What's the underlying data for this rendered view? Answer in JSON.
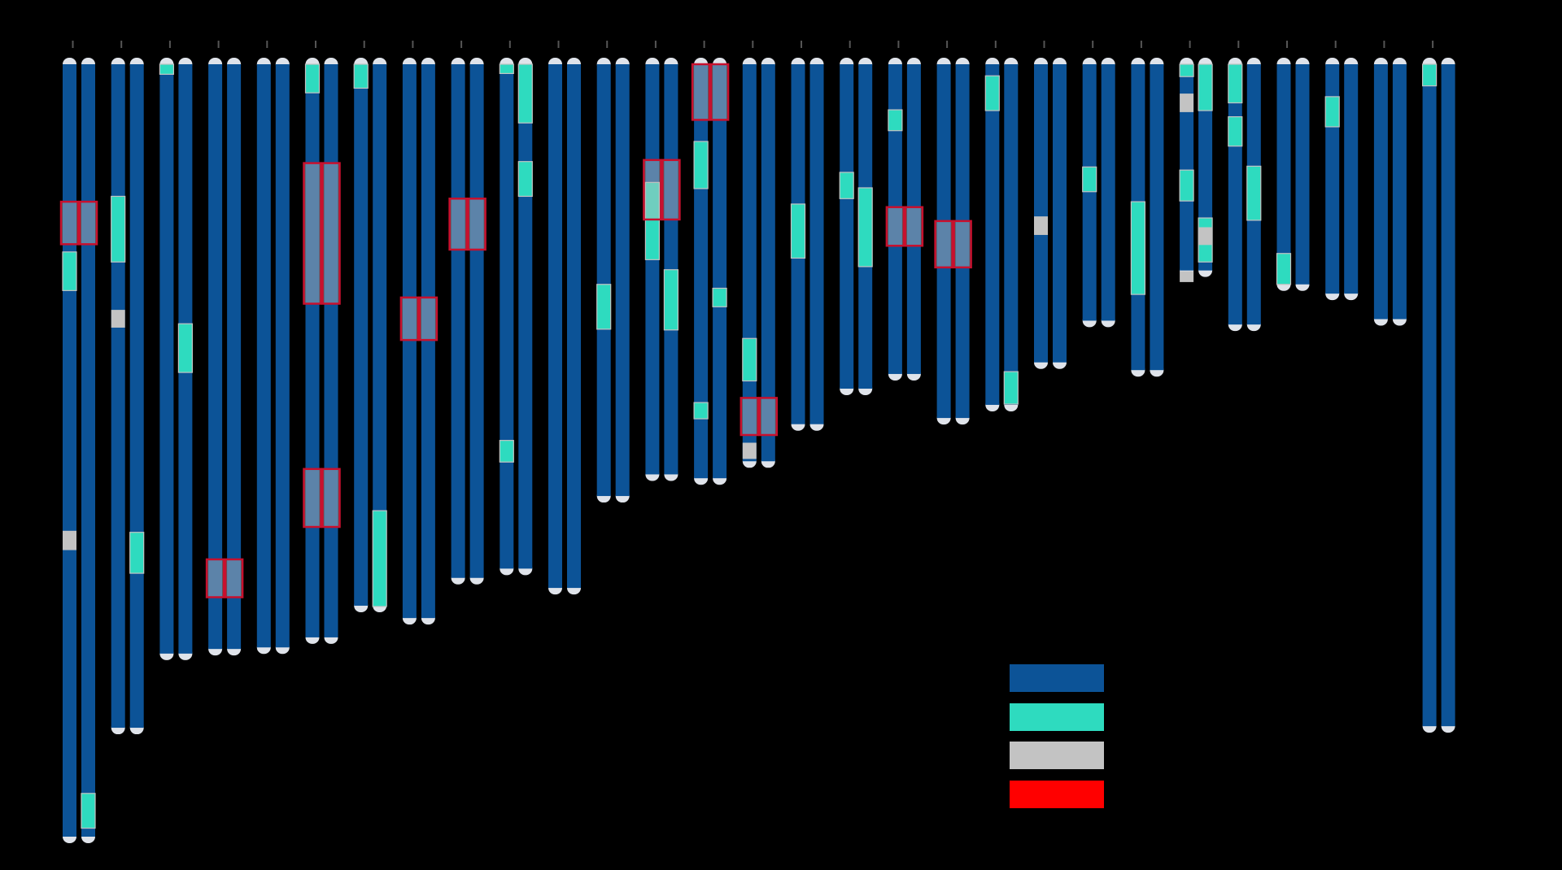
{
  "colors": {
    "background": "#000000",
    "chromosome": "#0c5397",
    "highlight": "#2edbbf",
    "gap": "#c3c3c3",
    "region": "#ff0000",
    "region_box_fill": "rgba(190,190,190,0.45)",
    "region_box_stroke": "#c8102e",
    "telomere": "#dfe3ea",
    "tick": "#555555"
  },
  "legend": {
    "items": [
      {
        "color": "#0c5397",
        "label": ""
      },
      {
        "color": "#2edbbf",
        "label": ""
      },
      {
        "color": "#c3c3c3",
        "label": ""
      },
      {
        "color": "#ff0000",
        "label": ""
      }
    ]
  },
  "chart_data": {
    "type": "ideogram",
    "x_tick_labels": [],
    "y_scale_max": 1000,
    "chromosomes": [
      {
        "label": "",
        "length": 1000,
        "highlights": [
          [
            243,
            293
          ],
          [
            944,
            989
          ]
        ],
        "gaps": [
          [
            604,
            629
          ]
        ],
        "regions": [
          [
            178,
            233
          ]
        ]
      },
      {
        "label": "",
        "length": 859,
        "highlights": [
          [
            171,
            256
          ],
          [
            606,
            659
          ]
        ],
        "gaps": [
          [
            318,
            341
          ]
        ],
        "regions": []
      },
      {
        "label": "",
        "length": 763,
        "highlights": [
          [
            0,
            13
          ],
          [
            336,
            399
          ]
        ],
        "gaps": [],
        "regions": []
      },
      {
        "label": "",
        "length": 757,
        "highlights": [],
        "gaps": [],
        "regions": [
          [
            641,
            690
          ]
        ]
      },
      {
        "label": "",
        "length": 755,
        "highlights": [],
        "gaps": [],
        "regions": []
      },
      {
        "label": "",
        "length": 742,
        "highlights": [
          [
            0,
            37
          ]
        ],
        "gaps": [],
        "regions": [
          [
            128,
            310
          ],
          [
            524,
            599
          ]
        ]
      },
      {
        "label": "",
        "length": 701,
        "highlights": [
          [
            0,
            31
          ],
          [
            578,
            702
          ]
        ],
        "gaps": [],
        "regions": []
      },
      {
        "label": "",
        "length": 717,
        "highlights": [],
        "gaps": [],
        "regions": [
          [
            302,
            357
          ]
        ]
      },
      {
        "label": "",
        "length": 665,
        "highlights": [],
        "gaps": [],
        "regions": [
          [
            174,
            240
          ]
        ]
      },
      {
        "label": "",
        "length": 653,
        "highlights": [
          [
            0,
            12
          ],
          [
            126,
            171
          ],
          [
            487,
            515
          ],
          [
            0,
            76
          ]
        ],
        "gaps": [],
        "regions": []
      },
      {
        "label": "",
        "length": 678,
        "highlights": [],
        "gaps": [],
        "regions": []
      },
      {
        "label": "",
        "length": 559,
        "highlights": [
          [
            285,
            343
          ]
        ],
        "gaps": [],
        "regions": []
      },
      {
        "label": "",
        "length": 531,
        "highlights": [
          [
            153,
            253
          ],
          [
            266,
            344
          ]
        ],
        "gaps": [],
        "regions": [
          [
            124,
            201
          ]
        ]
      },
      {
        "label": "",
        "length": 536,
        "highlights": [
          [
            100,
            161
          ],
          [
            290,
            314
          ],
          [
            438,
            459
          ]
        ],
        "gaps": [],
        "regions": [
          [
            0,
            72
          ]
        ]
      },
      {
        "label": "",
        "length": 514,
        "highlights": [
          [
            355,
            410
          ]
        ],
        "gaps": [
          [
            490,
            511
          ]
        ],
        "regions": [
          [
            432,
            480
          ]
        ]
      },
      {
        "label": "",
        "length": 466,
        "highlights": [
          [
            181,
            251
          ]
        ],
        "gaps": [],
        "regions": []
      },
      {
        "label": "",
        "length": 420,
        "highlights": [
          [
            140,
            174
          ],
          [
            160,
            262
          ]
        ],
        "gaps": [],
        "regions": []
      },
      {
        "label": "",
        "length": 401,
        "highlights": [
          [
            59,
            86
          ]
        ],
        "gaps": [],
        "regions": [
          [
            185,
            235
          ]
        ]
      },
      {
        "label": "",
        "length": 458,
        "highlights": [],
        "gaps": [],
        "regions": [
          [
            203,
            263
          ]
        ]
      },
      {
        "label": "",
        "length": 441,
        "highlights": [
          [
            15,
            60
          ],
          [
            398,
            440
          ]
        ],
        "gaps": [],
        "regions": []
      },
      {
        "label": "",
        "length": 386,
        "highlights": [],
        "gaps": [
          [
            197,
            221
          ]
        ],
        "regions": []
      },
      {
        "label": "",
        "length": 332,
        "highlights": [
          [
            133,
            165
          ]
        ],
        "gaps": [],
        "regions": []
      },
      {
        "label": "",
        "length": 396,
        "highlights": [
          [
            178,
            298
          ]
        ],
        "gaps": [],
        "regions": []
      },
      {
        "label": "",
        "length": 267,
        "highlights": [
          [
            137,
            177
          ],
          [
            199,
            256
          ],
          [
            0,
            16
          ],
          [
            0,
            60
          ]
        ],
        "gaps": [
          [
            268,
            282
          ],
          [
            211,
            234
          ],
          [
            38,
            62
          ]
        ],
        "regions": []
      },
      {
        "label": "",
        "length": 337,
        "highlights": [
          [
            68,
            106
          ],
          [
            132,
            202
          ],
          [
            0,
            50
          ]
        ],
        "gaps": [],
        "regions": []
      },
      {
        "label": "",
        "length": 285,
        "highlights": [
          [
            245,
            285
          ]
        ],
        "gaps": [],
        "regions": []
      },
      {
        "label": "",
        "length": 297,
        "highlights": [
          [
            42,
            81
          ]
        ],
        "gaps": [],
        "regions": []
      },
      {
        "label": "",
        "length": 330,
        "highlights": [],
        "gaps": [],
        "regions": []
      },
      {
        "label": "",
        "length": 857,
        "highlights": [
          [
            0,
            28
          ]
        ],
        "gaps": [],
        "regions": []
      }
    ]
  }
}
